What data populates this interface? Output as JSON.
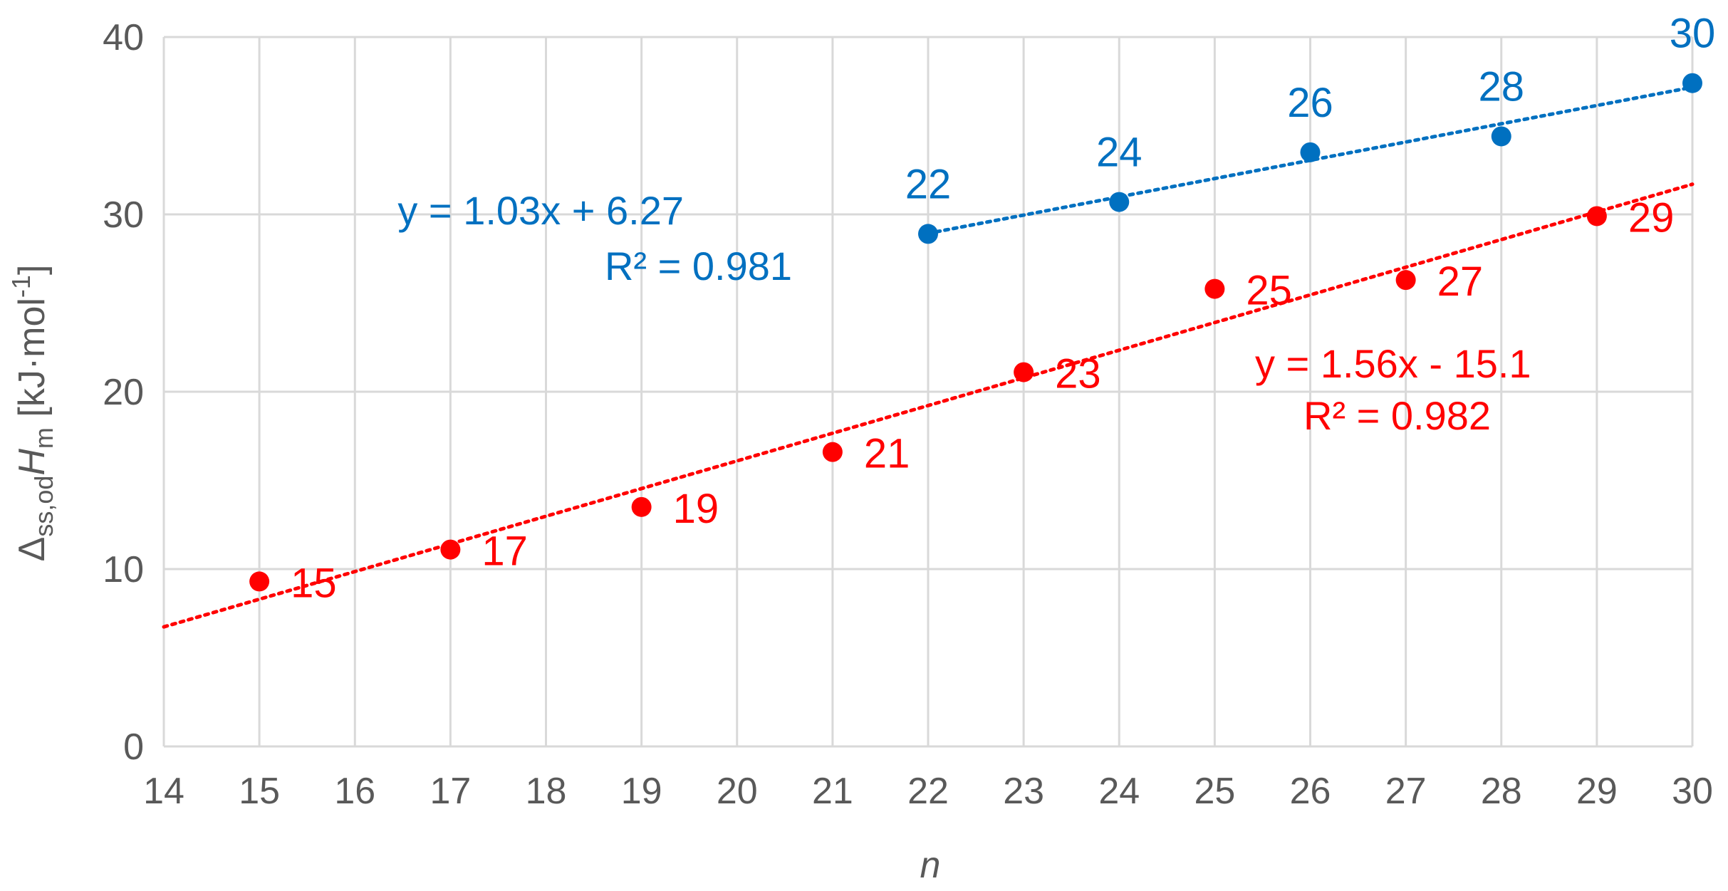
{
  "chart_data": {
    "type": "scatter",
    "x_label": "n",
    "y_label": {
      "main": "Δ",
      "sub1": "ss,od",
      "italic": "H",
      "sub2": "m",
      "unit_pre": " [kJ·mol",
      "unit_sup": "-1",
      "unit_post": "]"
    },
    "xlim": [
      14,
      30
    ],
    "ylim": [
      0,
      40
    ],
    "x_ticks": [
      14,
      15,
      16,
      17,
      18,
      19,
      20,
      21,
      22,
      23,
      24,
      25,
      26,
      27,
      28,
      29,
      30
    ],
    "y_ticks": [
      0,
      10,
      20,
      30,
      40
    ],
    "grid": true,
    "series": [
      {
        "color": "#ff0000",
        "points": [
          {
            "x": 15,
            "y": 9.3,
            "label": "15"
          },
          {
            "x": 17,
            "y": 11.1,
            "label": "17"
          },
          {
            "x": 19,
            "y": 13.5,
            "label": "19"
          },
          {
            "x": 21,
            "y": 16.6,
            "label": "21"
          },
          {
            "x": 23,
            "y": 21.1,
            "label": "23"
          },
          {
            "x": 25,
            "y": 25.8,
            "label": "25"
          },
          {
            "x": 27,
            "y": 26.3,
            "label": "27"
          },
          {
            "x": 29,
            "y": 29.9,
            "label": "29"
          }
        ],
        "trendline": {
          "slope": 1.56,
          "intercept": -15.1,
          "x_range": [
            14,
            30
          ]
        },
        "equation": "y = 1.56x - 15.1",
        "r2": "R² = 0.982"
      },
      {
        "color": "#0070c0",
        "points": [
          {
            "x": 22,
            "y": 28.9,
            "label": "22"
          },
          {
            "x": 24,
            "y": 30.7,
            "label": "24"
          },
          {
            "x": 26,
            "y": 33.5,
            "label": "26"
          },
          {
            "x": 28,
            "y": 34.4,
            "label": "28"
          },
          {
            "x": 30,
            "y": 37.4,
            "label": "30"
          }
        ],
        "trendline": {
          "slope": 1.03,
          "intercept": 6.27,
          "x_range": [
            22,
            30
          ]
        },
        "equation": "y = 1.03x + 6.27",
        "r2": "R² = 0.981"
      }
    ]
  }
}
